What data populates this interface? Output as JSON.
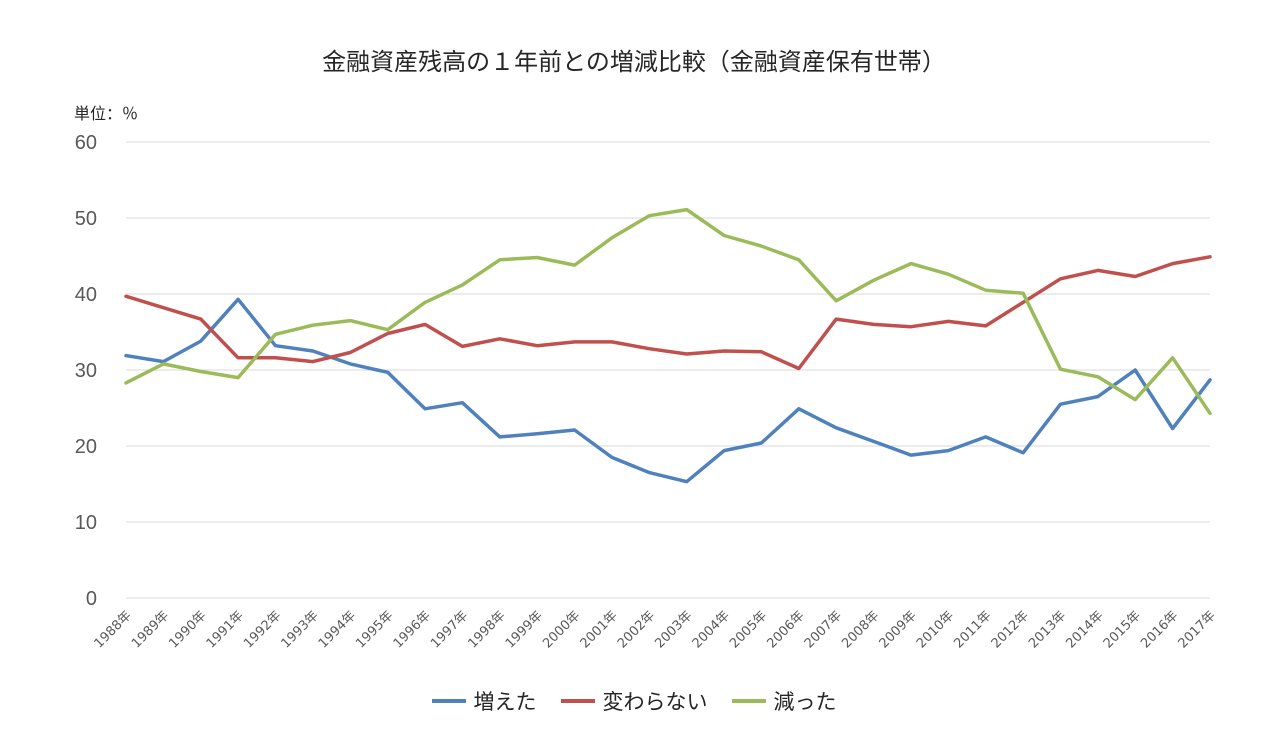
{
  "chart_data": {
    "type": "line",
    "title": "金融資産残高の１年前との増減比較（金融資産保有世帯）",
    "unit_label": "単位：％",
    "ylim": [
      0,
      60
    ],
    "yticks": [
      0,
      10,
      20,
      30,
      40,
      50,
      60
    ],
    "grid": true,
    "legend_position": "bottom",
    "categories": [
      "1988年",
      "1989年",
      "1990年",
      "1991年",
      "1992年",
      "1993年",
      "1994年",
      "1995年",
      "1996年",
      "1997年",
      "1998年",
      "1999年",
      "2000年",
      "2001年",
      "2002年",
      "2003年",
      "2004年",
      "2005年",
      "2006年",
      "2007年",
      "2008年",
      "2009年",
      "2010年",
      "2011年",
      "2012年",
      "2013年",
      "2014年",
      "2015年",
      "2016年",
      "2017年"
    ],
    "series": [
      {
        "name": "増えた",
        "color": "#4F81BD",
        "values": [
          31.9,
          31.1,
          33.8,
          39.3,
          33.2,
          32.5,
          30.8,
          29.7,
          24.9,
          25.7,
          21.2,
          21.6,
          22.1,
          18.5,
          16.5,
          15.3,
          19.4,
          20.4,
          24.9,
          22.4,
          20.6,
          18.8,
          19.4,
          21.2,
          19.1,
          25.5,
          26.5,
          30.0,
          22.3,
          28.7
        ]
      },
      {
        "name": "変わらない",
        "color": "#C0504D",
        "values": [
          39.7,
          38.2,
          36.7,
          31.6,
          31.6,
          31.1,
          32.3,
          34.8,
          36.0,
          33.1,
          34.1,
          33.2,
          33.7,
          33.7,
          32.8,
          32.1,
          32.5,
          32.4,
          30.2,
          36.7,
          36.0,
          35.7,
          36.4,
          35.8,
          38.9,
          42.0,
          43.1,
          42.3,
          44.0,
          44.9
        ]
      },
      {
        "name": "減った",
        "color": "#9BBB59",
        "values": [
          28.3,
          30.8,
          29.8,
          29.0,
          34.7,
          35.9,
          36.5,
          35.3,
          38.9,
          41.2,
          44.5,
          44.8,
          43.8,
          47.4,
          50.3,
          51.1,
          47.7,
          46.3,
          44.5,
          39.1,
          41.8,
          44.0,
          42.6,
          40.5,
          40.1,
          30.1,
          29.1,
          26.1,
          31.6,
          24.3
        ]
      }
    ]
  }
}
